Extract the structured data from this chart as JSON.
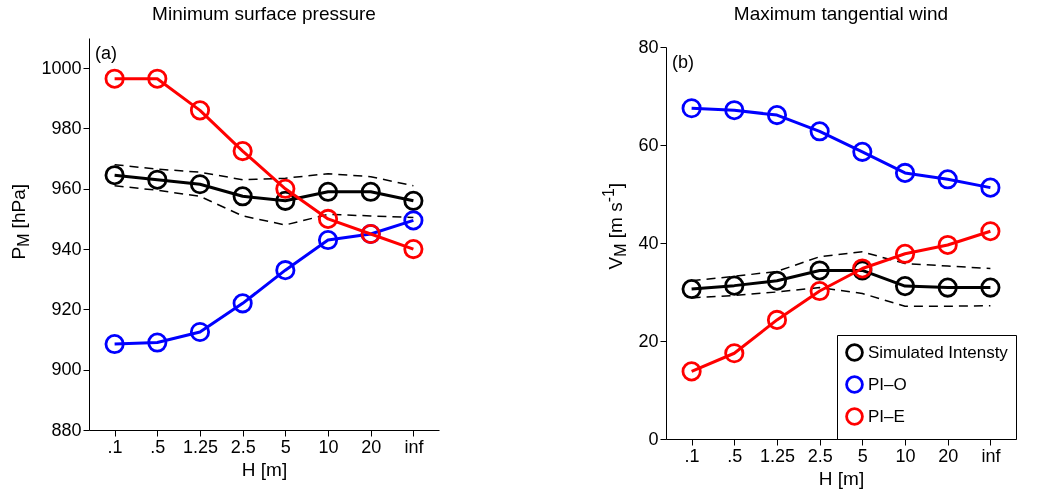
{
  "chart_data": [
    {
      "type": "line",
      "title": "Minimum surface pressure",
      "xlabel": "H [m]",
      "ylabel": "P$_{M}$ [hPa]",
      "annotations": [
        "(a)"
      ],
      "categories": [
        ".1",
        ".5",
        "1.25",
        "2.5",
        "5",
        "10",
        "20",
        "inf"
      ],
      "ylim": [
        880,
        1010
      ],
      "yticks": [
        880,
        900,
        920,
        940,
        960,
        980,
        1000
      ],
      "grid": false,
      "marker": "circle",
      "series": [
        {
          "color": "#000000",
          "line_style": "dashed",
          "marker": "none",
          "values": [
            968,
            966.5,
            965.5,
            963,
            963.5,
            965,
            964,
            961
          ]
        },
        {
          "color": "#000000",
          "line_style": "dashed",
          "marker": "none",
          "values": [
            961,
            959.5,
            957.5,
            951,
            948,
            951.5,
            951,
            950.5
          ]
        },
        {
          "color": "#000000",
          "values": [
            964.5,
            963,
            961.5,
            957.5,
            956,
            959,
            959,
            956
          ]
        },
        {
          "color": "#0000ff",
          "values": [
            908.5,
            909,
            912.5,
            922,
            933,
            943,
            945,
            949.5
          ]
        },
        {
          "color": "#ff0000",
          "values": [
            996.5,
            996.5,
            986,
            972.5,
            960,
            950,
            945,
            940
          ]
        }
      ]
    },
    {
      "type": "line",
      "title": "Maximum tangential wind",
      "xlabel": "H [m]",
      "ylabel": "V$_{M}$ [m s$^{-1}$]",
      "annotations": [
        "(b)"
      ],
      "categories": [
        ".1",
        ".5",
        "1.25",
        "2.5",
        "5",
        "10",
        "20",
        "inf"
      ],
      "ylim": [
        0,
        80
      ],
      "yticks": [
        0,
        20,
        40,
        60,
        80
      ],
      "grid": false,
      "legend": "bottom right",
      "marker": "circle",
      "series": [
        {
          "color": "#000000",
          "line_style": "dashed",
          "marker": "none",
          "values": [
            32.3,
            33.2,
            34.2,
            37.2,
            38.2,
            35.8,
            35.3,
            34.8
          ]
        },
        {
          "color": "#000000",
          "line_style": "dashed",
          "marker": "none",
          "values": [
            28.8,
            29.3,
            30,
            30.9,
            29.7,
            27.1,
            27.1,
            27.2
          ]
        },
        {
          "name": "Simulated Intensty",
          "color": "#000000",
          "values": [
            30.6,
            31.3,
            32.3,
            34.4,
            34.4,
            31.2,
            30.9,
            30.9
          ]
        },
        {
          "name": "PI–O",
          "color": "#0000ff",
          "values": [
            67.5,
            67.1,
            66.1,
            62.8,
            58.6,
            54.3,
            53,
            51.3
          ]
        },
        {
          "name": "PI–E",
          "color": "#ff0000",
          "values": [
            13.8,
            17.5,
            24.3,
            30.2,
            34.8,
            37.8,
            39.6,
            42.4
          ]
        }
      ]
    }
  ]
}
